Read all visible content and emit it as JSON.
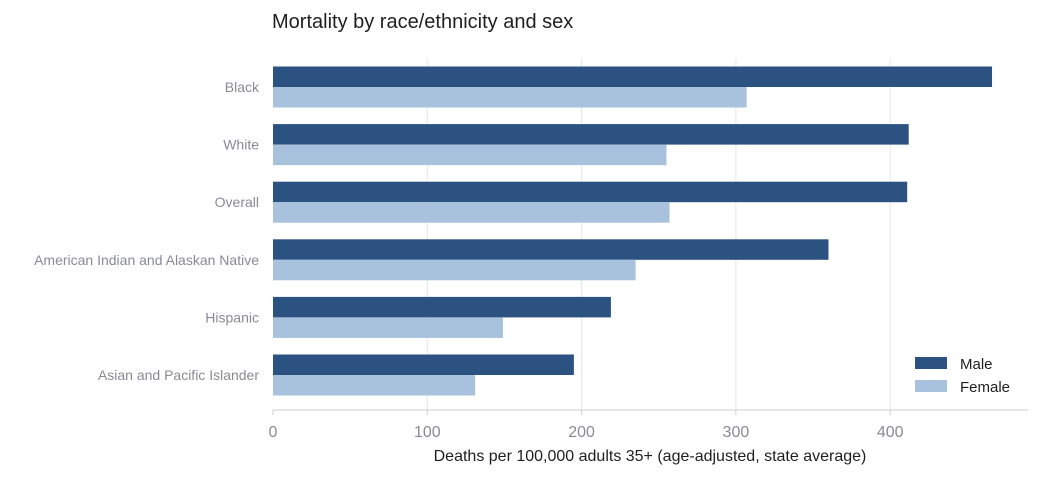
{
  "chart_data": {
    "type": "bar",
    "orientation": "horizontal",
    "title": "Mortality by race/ethnicity and sex",
    "xlabel": "Deaths per 100,000 adults 35+ (age-adjusted, state average)",
    "ylabel": "",
    "categories": [
      "Black",
      "White",
      "Overall",
      "American Indian and Alaskan Native",
      "Hispanic",
      "Asian and Pacific Islander"
    ],
    "series": [
      {
        "name": "Male",
        "color": "#2c5282",
        "values": [
          466,
          412,
          411,
          360,
          219,
          195
        ]
      },
      {
        "name": "Female",
        "color": "#a8c1dc",
        "values": [
          307,
          255,
          257,
          235,
          149,
          131
        ]
      }
    ],
    "xlim": [
      0,
      490
    ],
    "xticks": [
      0,
      100,
      200,
      300,
      400
    ],
    "grid": "vertical",
    "legend_position": "bottom-right"
  }
}
